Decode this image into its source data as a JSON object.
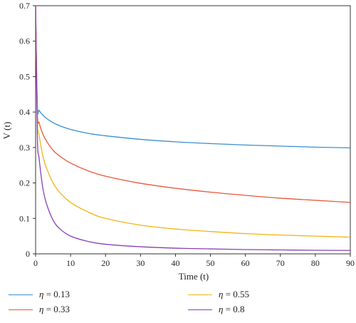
{
  "chart_data": {
    "type": "line",
    "title": "",
    "xlabel": "Time (t)",
    "ylabel": "V (t)",
    "xlim": [
      0,
      90
    ],
    "ylim": [
      0,
      0.7
    ],
    "xticks": [
      0,
      10,
      20,
      30,
      40,
      50,
      60,
      70,
      80,
      90
    ],
    "yticks": [
      0,
      0.1,
      0.2,
      0.3,
      0.4,
      0.5,
      0.6,
      0.7
    ],
    "xtick_labels": [
      "0",
      "10",
      "20",
      "30",
      "40",
      "50",
      "60",
      "70",
      "80",
      "90"
    ],
    "ytick_labels": [
      "0",
      "0.1",
      "0.2",
      "0.3",
      "0.4",
      "0.5",
      "0.6",
      "0.7"
    ],
    "grid": false,
    "legend_position": "bottom",
    "x": [
      0,
      0.5,
      1,
      2,
      3,
      5,
      7,
      10,
      15,
      20,
      30,
      40,
      50,
      60,
      70,
      80,
      90
    ],
    "series": [
      {
        "name": "η = 0.13",
        "eta_symbol": "η",
        "eta_value": "= 0.13",
        "color": "#3a8fd0",
        "values": [
          0.7,
          0.42,
          0.405,
          0.392,
          0.383,
          0.37,
          0.361,
          0.351,
          0.34,
          0.333,
          0.323,
          0.316,
          0.311,
          0.307,
          0.304,
          0.301,
          0.299
        ]
      },
      {
        "name": "η = 0.33",
        "eta_symbol": "η",
        "eta_value": "= 0.33",
        "color": "#e8573a",
        "values": [
          0.7,
          0.4,
          0.37,
          0.34,
          0.32,
          0.292,
          0.275,
          0.256,
          0.234,
          0.219,
          0.199,
          0.185,
          0.174,
          0.165,
          0.157,
          0.151,
          0.145
        ]
      },
      {
        "name": "η = 0.55",
        "eta_symbol": "η",
        "eta_value": "= 0.55",
        "color": "#f2b418",
        "values": [
          0.7,
          0.38,
          0.335,
          0.28,
          0.245,
          0.2,
          0.172,
          0.145,
          0.118,
          0.1,
          0.081,
          0.07,
          0.063,
          0.057,
          0.053,
          0.05,
          0.047
        ]
      },
      {
        "name": "η = 0.8",
        "eta_symbol": "η",
        "eta_value": "= 0.8",
        "color": "#8a3fb5",
        "values": [
          0.7,
          0.33,
          0.27,
          0.19,
          0.145,
          0.095,
          0.07,
          0.05,
          0.035,
          0.027,
          0.02,
          0.016,
          0.014,
          0.012,
          0.011,
          0.01,
          0.0095
        ]
      }
    ]
  }
}
